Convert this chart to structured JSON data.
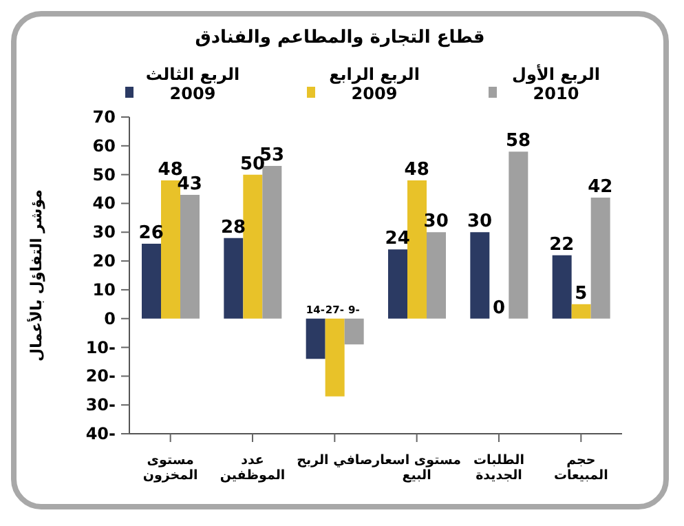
{
  "chart_data": {
    "type": "bar",
    "title": "قطاع التجارة والمطاعم والفنادق",
    "ylabel": "مؤشر التفاؤل بالأعمال",
    "categories": [
      "مستوى المخزون",
      "عدد الموظفين",
      "صافي الربح",
      "مستوى اسعار البيع",
      "الطلبات الجديدة",
      "حجم المبيعات"
    ],
    "series": [
      {
        "name": "الربع الثالث 2009",
        "color": "#2b3a63",
        "values": [
          26,
          28,
          -14,
          24,
          30,
          22
        ],
        "value_labels": [
          "26",
          "28",
          "-14",
          "24",
          "30",
          "22"
        ]
      },
      {
        "name": "الربع الرابع 2009",
        "color": "#e8c229",
        "values": [
          48,
          50,
          -27,
          48,
          0,
          5
        ],
        "value_labels": [
          "48",
          "50",
          "-27",
          "48",
          "0",
          "5"
        ]
      },
      {
        "name": "الربع الأول 2010",
        "color": "#a0a0a0",
        "values": [
          43,
          53,
          -9,
          30,
          58,
          42
        ],
        "value_labels": [
          "43",
          "53",
          "-9",
          "30",
          "58",
          "42"
        ]
      }
    ],
    "ylim": [
      -40,
      70
    ],
    "yticks": [
      -40,
      -30,
      -20,
      -10,
      0,
      10,
      20,
      30,
      40,
      50,
      60,
      70
    ],
    "grid": false,
    "legend": "top"
  }
}
